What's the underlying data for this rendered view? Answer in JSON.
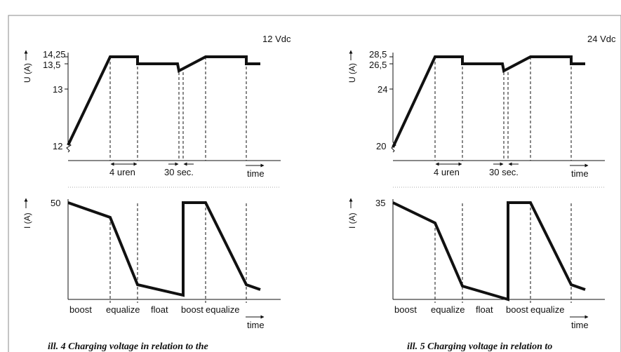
{
  "panels": [
    {
      "id": "p12",
      "voltage_label": "12 Vdc",
      "upper_axis_label": "U (A)",
      "upper_ticks": [
        "14,25",
        "13,5",
        "13",
        "12"
      ],
      "duration_labels": [
        "4 uren",
        "30 sec."
      ],
      "time_label": "time",
      "lower_axis_label": "I (A)",
      "lower_tick": "50",
      "phase_labels": [
        "boost",
        "equalize",
        "float",
        "boost",
        "equalize"
      ],
      "caption": "ill. 4 Charging voltage in relation to the"
    },
    {
      "id": "p24",
      "voltage_label": "24 Vdc",
      "upper_axis_label": "U (A)",
      "upper_ticks": [
        "28,5",
        "26,5",
        "24",
        "20"
      ],
      "duration_labels": [
        "4 uren",
        "30 sec."
      ],
      "time_label": "time",
      "lower_axis_label": "I (A)",
      "lower_tick": "35",
      "phase_labels": [
        "boost",
        "equalize",
        "float",
        "boost",
        "equalize"
      ],
      "caption": "ill. 5 Charging voltage in relation to"
    }
  ]
}
